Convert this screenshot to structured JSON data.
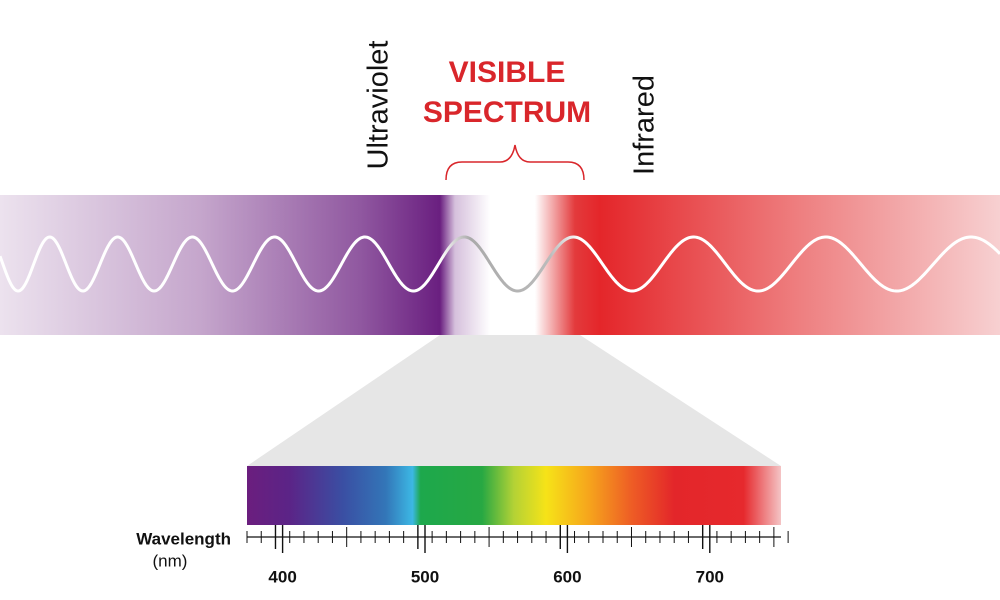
{
  "labels": {
    "ultraviolet": "Ultraviolet",
    "visible": [
      "VISIBLE",
      "SPECTRUM"
    ],
    "infrared": "Infrared"
  },
  "scale": {
    "title": "Wavelength",
    "unit": "(nm)",
    "range": [
      375,
      750
    ],
    "ticks": [
      400,
      500,
      600,
      700
    ]
  }
}
